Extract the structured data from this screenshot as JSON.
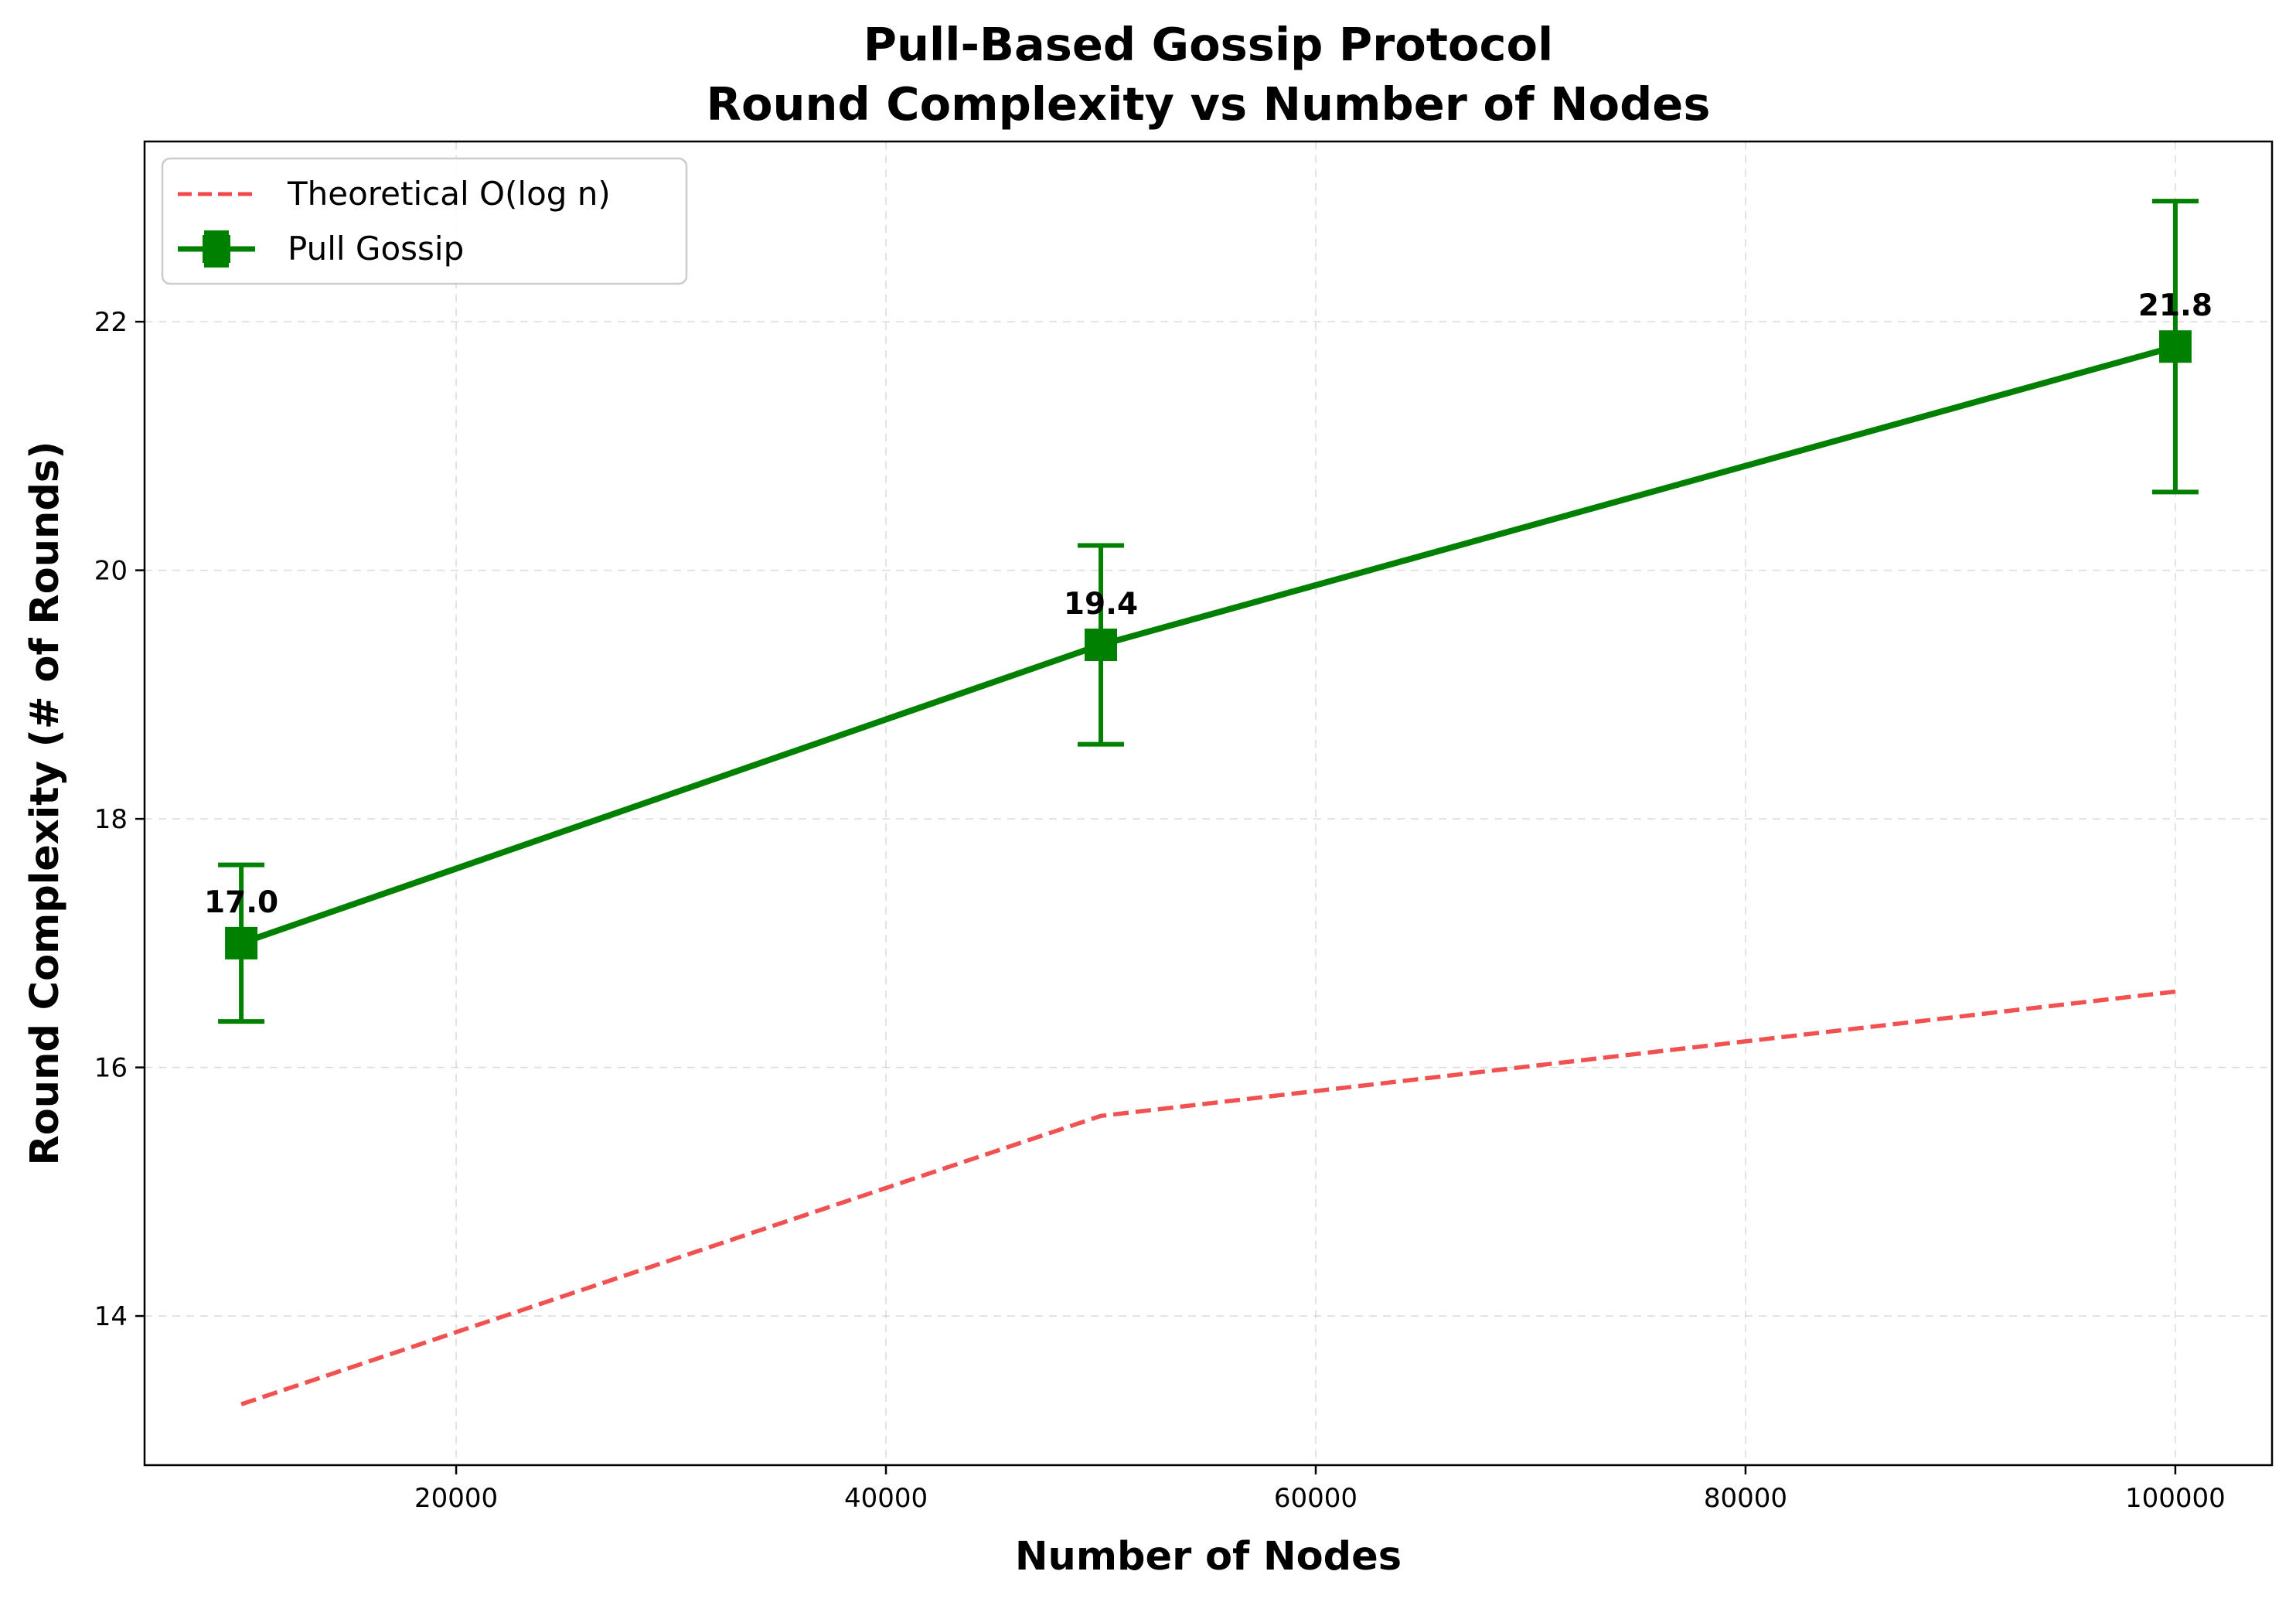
{
  "chart_data": {
    "type": "line",
    "title": "Pull-Based Gossip Protocol",
    "subtitle": "Round Complexity vs Number of Nodes",
    "xlabel": "Number of Nodes",
    "ylabel": "Round Complexity (# of Rounds)",
    "xlim": [
      5500,
      104500
    ],
    "ylim": [
      12.8,
      23.45
    ],
    "xticks": [
      20000,
      40000,
      60000,
      80000,
      100000
    ],
    "yticks": [
      14,
      16,
      18,
      20,
      22
    ],
    "grid": true,
    "legend_position": "top-left",
    "series": [
      {
        "name": "Theoretical O(log n)",
        "style": "dashed",
        "color": "#f04848",
        "x": [
          10000,
          50000,
          100000
        ],
        "y": [
          13.29,
          15.61,
          16.61
        ]
      },
      {
        "name": "Pull Gossip",
        "style": "solid",
        "marker": "square",
        "color": "#008000",
        "x": [
          10000,
          50000,
          100000
        ],
        "y": [
          17.0,
          19.4,
          21.8
        ],
        "err_low": [
          16.37,
          18.6,
          20.63
        ],
        "err_high": [
          17.63,
          20.2,
          22.97
        ],
        "labels": [
          "17.0",
          "19.4",
          "21.8"
        ]
      }
    ]
  }
}
